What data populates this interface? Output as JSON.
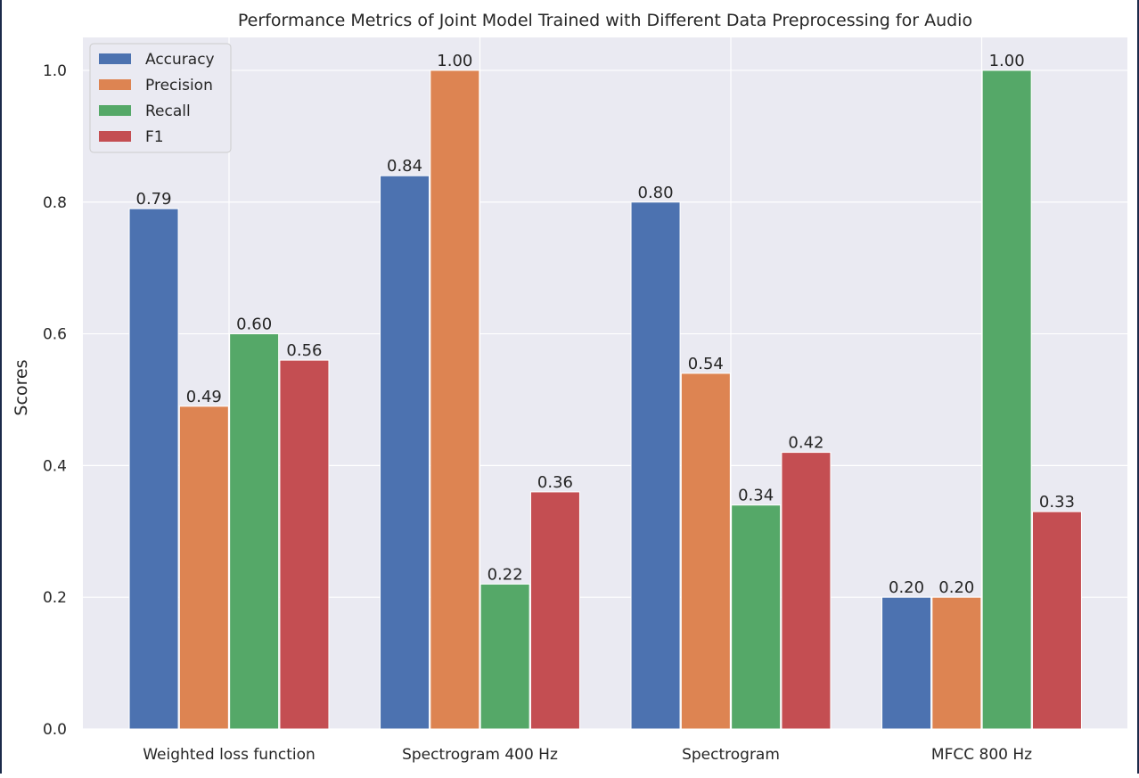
{
  "chart_data": {
    "type": "bar",
    "title": "Performance Metrics of Joint Model Trained with Different Data Preprocessing for Audio",
    "xlabel": "",
    "ylabel": "Scores",
    "categories": [
      "Weighted loss function",
      "Spectrogram 400 Hz",
      "Spectrogram",
      "MFCC 800 Hz"
    ],
    "series": [
      {
        "name": "Accuracy",
        "color": "#4c72b0",
        "values": [
          0.79,
          0.84,
          0.8,
          0.2
        ]
      },
      {
        "name": "Precision",
        "color": "#dd8452",
        "values": [
          0.49,
          1.0,
          0.54,
          0.2
        ]
      },
      {
        "name": "Recall",
        "color": "#55a868",
        "values": [
          0.6,
          0.22,
          0.34,
          1.0
        ]
      },
      {
        "name": "F1",
        "color": "#c44e52",
        "values": [
          0.56,
          0.36,
          0.42,
          0.33
        ]
      }
    ],
    "value_labels": [
      [
        "0.79",
        "0.84",
        "0.80",
        "0.20"
      ],
      [
        "0.49",
        "1.00",
        "0.54",
        "0.20"
      ],
      [
        "0.60",
        "0.22",
        "0.34",
        "1.00"
      ],
      [
        "0.56",
        "0.36",
        "0.42",
        "0.33"
      ]
    ],
    "yticks": [
      "0.0",
      "0.2",
      "0.4",
      "0.6",
      "0.8",
      "1.0"
    ],
    "ylim": [
      0,
      1.05
    ],
    "grid": true,
    "legend_position": "top-left",
    "style": {
      "plot_background": "#eaeaf2",
      "grid_color": "#ffffff"
    }
  }
}
